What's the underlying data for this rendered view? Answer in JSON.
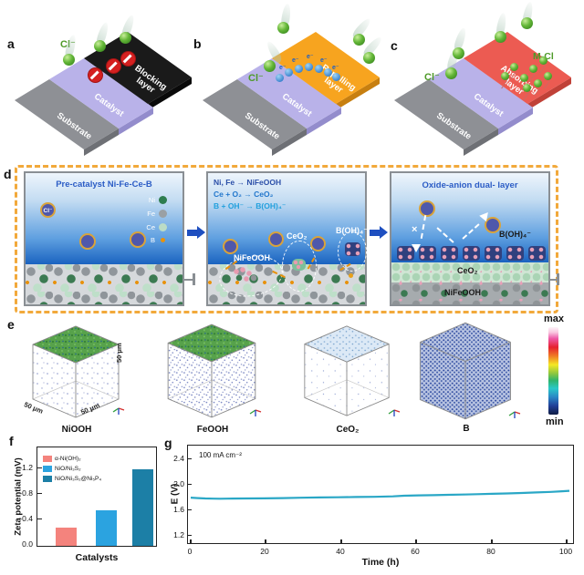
{
  "panels": {
    "a": {
      "label": "a",
      "cl_label": "Cl⁻",
      "layer": "Blocking layer",
      "catalyst": "Catalyst",
      "substrate": "Substrate"
    },
    "b": {
      "label": "b",
      "cl_label": "Cl⁻",
      "electron_label": "e⁻",
      "layer": "Repelling layer",
      "catalyst": "Catalyst",
      "substrate": "Substrate"
    },
    "c": {
      "label": "c",
      "cl_label": "Cl⁻",
      "mcl_label": "M-Cl",
      "layer": "Absorbing layer",
      "catalyst": "Catalyst",
      "substrate": "Substrate"
    },
    "d": {
      "label": "d",
      "box1": {
        "title": "Pre-catalyst Ni-Fe-Ce-B",
        "cl_ion": "Cl⁻",
        "legend": [
          {
            "name": "Ni",
            "color": "#2e7d4f"
          },
          {
            "name": "Fe",
            "color": "#9aa0a5"
          },
          {
            "name": "Ce",
            "color": "#bcdcc6"
          },
          {
            "name": "B",
            "color": "#e8920c"
          }
        ]
      },
      "box2": {
        "reactions": [
          "Ni, Fe → NiFeOOH",
          "Ce + O₂ → CeO₂",
          "B + OH⁻ → B(OH)₄⁻"
        ],
        "label_nifeooh": "NiFeOOH",
        "label_ceo2": "CeO₂",
        "label_boh4": "B(OH)₄⁻"
      },
      "box3": {
        "title": "Oxide-anion dual- layer",
        "label_boh4": "B(OH)₄⁻",
        "label_ceo2": "CeO₂",
        "label_nifeooh": "NiFeOOH",
        "x_mark": "×"
      }
    },
    "e": {
      "label": "e",
      "cubes": [
        {
          "name": "NiOOH"
        },
        {
          "name": "FeOOH"
        },
        {
          "name": "CeO₂"
        },
        {
          "name": "B"
        }
      ],
      "scale_labels": [
        "50 μm",
        "50 μm",
        "50 μm"
      ],
      "colorbar_max": "max",
      "colorbar_min": "min"
    },
    "f": {
      "label": "f"
    },
    "g": {
      "label": "g"
    }
  },
  "chart_data": [
    {
      "type": "bar",
      "panel": "f",
      "title": "",
      "xlabel": "Catalysts",
      "ylabel": "Zeta potential (mV)",
      "categories": [
        "α-Ni(OH)₂",
        "NiO/Ni₃S₂",
        "NiO/Ni₃S₂@Ni₅P₄"
      ],
      "values": [
        -0.29,
        -0.55,
        -1.19
      ],
      "bar_colors": [
        "#f4837d",
        "#2ba3e0",
        "#1c7fa6"
      ],
      "ylim": [
        0,
        -1.53
      ],
      "yticks_display": [
        "-1.2",
        "-0.8",
        "-0.4",
        "0.0"
      ],
      "legend": [
        "α-Ni(OH)₂",
        "NiO/Ni₃S₂",
        "NiO/Ni₃S₂@Ni₅P₄"
      ],
      "legend_position": "top-left",
      "grid": false
    },
    {
      "type": "line",
      "panel": "g",
      "annotation": "100 mA cm⁻²",
      "xlabel": "Time (h)",
      "ylabel": "E (V)",
      "xlim": [
        0,
        103
      ],
      "ylim": [
        1.05,
        2.61
      ],
      "xticks_display": [
        "0",
        "20",
        "40",
        "60",
        "80",
        "100"
      ],
      "yticks_display": [
        "2.4",
        "2.0",
        "1.6",
        "1.2"
      ],
      "line_color": "#2aa7c6",
      "grid": false,
      "series": [
        {
          "x": [
            0,
            2,
            4,
            6,
            8,
            10,
            15,
            20,
            25,
            30,
            35,
            40,
            45,
            50,
            55,
            58,
            62,
            66,
            70,
            74,
            78,
            82,
            86,
            90,
            94,
            98,
            101,
            103
          ],
          "y": [
            1.77,
            1.762,
            1.757,
            1.753,
            1.752,
            1.753,
            1.756,
            1.758,
            1.762,
            1.768,
            1.773,
            1.776,
            1.78,
            1.783,
            1.79,
            1.8,
            1.806,
            1.81,
            1.815,
            1.82,
            1.826,
            1.832,
            1.838,
            1.845,
            1.853,
            1.862,
            1.872,
            1.88
          ]
        }
      ]
    }
  ]
}
